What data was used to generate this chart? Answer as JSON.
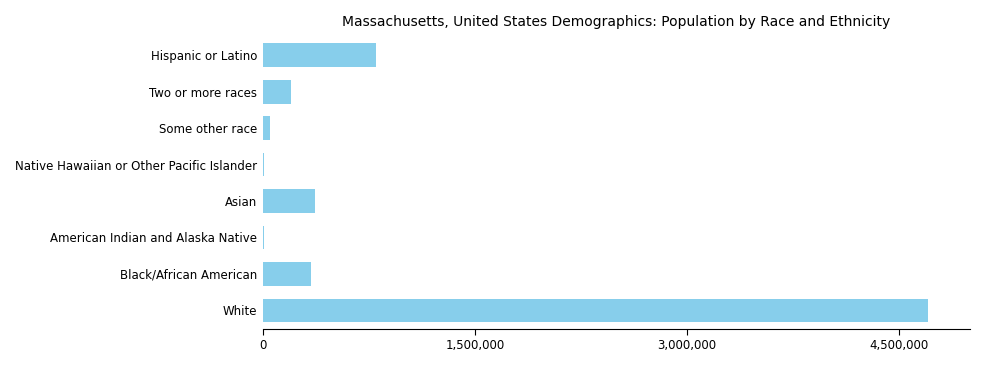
{
  "title": "Massachusetts, United States Demographics: Population by Race and Ethnicity",
  "categories": [
    "White",
    "Black/African American",
    "American Indian and Alaska Native",
    "Asian",
    "Native Hawaiian or Other Pacific Islander",
    "Some other race",
    "Two or more races",
    "Hispanic or Latino"
  ],
  "values": [
    4700000,
    340000,
    12000,
    370000,
    8000,
    55000,
    200000,
    800000
  ],
  "bar_color": "#87CEEB",
  "xlim": [
    0,
    5000000
  ],
  "xticks": [
    0,
    1500000,
    3000000,
    4500000
  ],
  "xtick_labels": [
    "0",
    "1,500,000",
    "3,000,000",
    "4,500,000"
  ],
  "background_color": "#ffffff",
  "title_fontsize": 10,
  "tick_fontsize": 8.5
}
